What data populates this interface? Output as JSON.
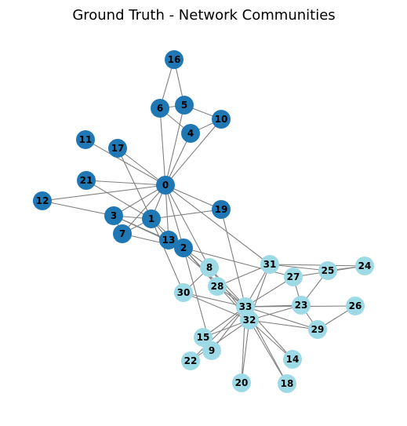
{
  "title": "Ground Truth - Network Communities",
  "colors": {
    "community_a": "#1f77b4",
    "community_b": "#9edae5",
    "edge": "#808080",
    "label": "#000000"
  },
  "nodes": [
    {
      "id": "0",
      "community": "a"
    },
    {
      "id": "1",
      "community": "a"
    },
    {
      "id": "2",
      "community": "a"
    },
    {
      "id": "3",
      "community": "a"
    },
    {
      "id": "4",
      "community": "a"
    },
    {
      "id": "5",
      "community": "a"
    },
    {
      "id": "6",
      "community": "a"
    },
    {
      "id": "7",
      "community": "a"
    },
    {
      "id": "8",
      "community": "b"
    },
    {
      "id": "9",
      "community": "b"
    },
    {
      "id": "10",
      "community": "a"
    },
    {
      "id": "11",
      "community": "a"
    },
    {
      "id": "12",
      "community": "a"
    },
    {
      "id": "13",
      "community": "a"
    },
    {
      "id": "14",
      "community": "b"
    },
    {
      "id": "15",
      "community": "b"
    },
    {
      "id": "16",
      "community": "a"
    },
    {
      "id": "17",
      "community": "a"
    },
    {
      "id": "18",
      "community": "b"
    },
    {
      "id": "19",
      "community": "a"
    },
    {
      "id": "20",
      "community": "b"
    },
    {
      "id": "21",
      "community": "a"
    },
    {
      "id": "22",
      "community": "b"
    },
    {
      "id": "23",
      "community": "b"
    },
    {
      "id": "24",
      "community": "b"
    },
    {
      "id": "25",
      "community": "b"
    },
    {
      "id": "26",
      "community": "b"
    },
    {
      "id": "27",
      "community": "b"
    },
    {
      "id": "28",
      "community": "b"
    },
    {
      "id": "29",
      "community": "b"
    },
    {
      "id": "30",
      "community": "b"
    },
    {
      "id": "31",
      "community": "b"
    },
    {
      "id": "32",
      "community": "b"
    },
    {
      "id": "33",
      "community": "b"
    }
  ],
  "edges": [
    [
      "0",
      "1"
    ],
    [
      "0",
      "2"
    ],
    [
      "0",
      "3"
    ],
    [
      "0",
      "4"
    ],
    [
      "0",
      "5"
    ],
    [
      "0",
      "6"
    ],
    [
      "0",
      "7"
    ],
    [
      "0",
      "8"
    ],
    [
      "0",
      "10"
    ],
    [
      "0",
      "11"
    ],
    [
      "0",
      "12"
    ],
    [
      "0",
      "13"
    ],
    [
      "0",
      "17"
    ],
    [
      "0",
      "19"
    ],
    [
      "0",
      "21"
    ],
    [
      "0",
      "31"
    ],
    [
      "1",
      "2"
    ],
    [
      "1",
      "3"
    ],
    [
      "1",
      "7"
    ],
    [
      "1",
      "13"
    ],
    [
      "1",
      "17"
    ],
    [
      "1",
      "19"
    ],
    [
      "1",
      "21"
    ],
    [
      "1",
      "30"
    ],
    [
      "2",
      "3"
    ],
    [
      "2",
      "7"
    ],
    [
      "2",
      "8"
    ],
    [
      "2",
      "9"
    ],
    [
      "2",
      "13"
    ],
    [
      "2",
      "27"
    ],
    [
      "2",
      "28"
    ],
    [
      "2",
      "32"
    ],
    [
      "3",
      "7"
    ],
    [
      "3",
      "12"
    ],
    [
      "3",
      "13"
    ],
    [
      "4",
      "6"
    ],
    [
      "4",
      "10"
    ],
    [
      "5",
      "6"
    ],
    [
      "5",
      "10"
    ],
    [
      "5",
      "16"
    ],
    [
      "6",
      "16"
    ],
    [
      "8",
      "30"
    ],
    [
      "8",
      "32"
    ],
    [
      "8",
      "33"
    ],
    [
      "9",
      "33"
    ],
    [
      "13",
      "33"
    ],
    [
      "14",
      "32"
    ],
    [
      "14",
      "33"
    ],
    [
      "15",
      "32"
    ],
    [
      "15",
      "33"
    ],
    [
      "18",
      "32"
    ],
    [
      "18",
      "33"
    ],
    [
      "19",
      "33"
    ],
    [
      "20",
      "32"
    ],
    [
      "20",
      "33"
    ],
    [
      "22",
      "32"
    ],
    [
      "22",
      "33"
    ],
    [
      "23",
      "25"
    ],
    [
      "23",
      "27"
    ],
    [
      "23",
      "29"
    ],
    [
      "23",
      "32"
    ],
    [
      "23",
      "33"
    ],
    [
      "24",
      "25"
    ],
    [
      "24",
      "27"
    ],
    [
      "24",
      "31"
    ],
    [
      "25",
      "31"
    ],
    [
      "26",
      "29"
    ],
    [
      "26",
      "33"
    ],
    [
      "27",
      "33"
    ],
    [
      "28",
      "31"
    ],
    [
      "28",
      "33"
    ],
    [
      "29",
      "32"
    ],
    [
      "29",
      "33"
    ],
    [
      "30",
      "32"
    ],
    [
      "30",
      "33"
    ],
    [
      "31",
      "32"
    ],
    [
      "31",
      "33"
    ],
    [
      "32",
      "33"
    ]
  ]
}
